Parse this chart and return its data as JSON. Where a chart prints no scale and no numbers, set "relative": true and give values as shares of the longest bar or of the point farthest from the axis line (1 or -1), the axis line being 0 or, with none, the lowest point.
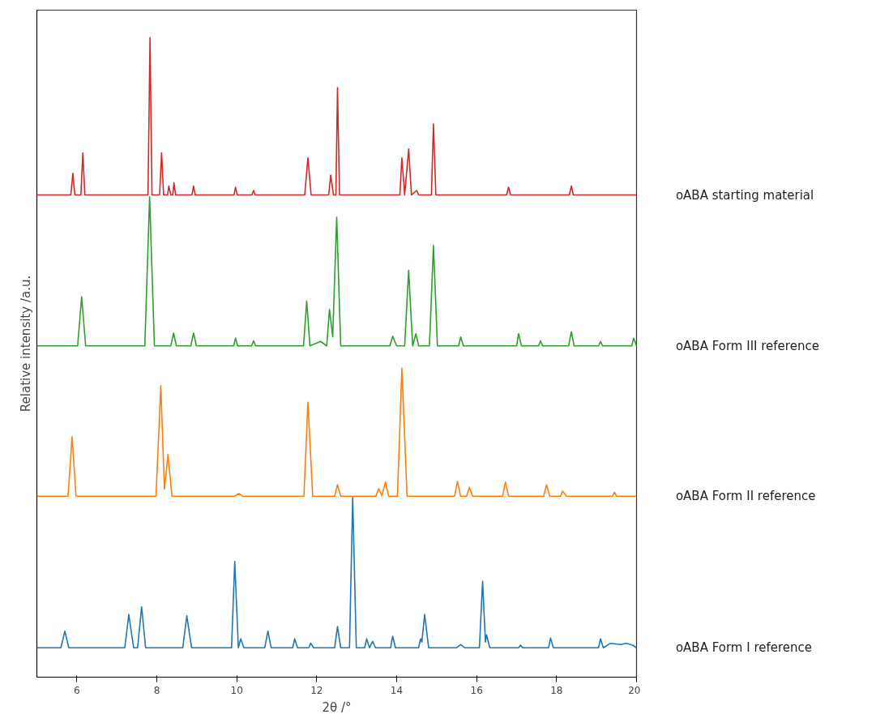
{
  "chart_data": {
    "type": "line",
    "relative": true,
    "xlabel": "2θ /°",
    "ylabel": "Relative intensity /a.u.",
    "xlim": [
      5,
      20
    ],
    "xticks": [
      6,
      8,
      10,
      12,
      14,
      16,
      18,
      20
    ],
    "grid": false,
    "tick_labels": "x",
    "series": [
      {
        "name": "oABA starting material",
        "color": "#d62728",
        "x": [
          5.0,
          5.85,
          5.9,
          5.95,
          6.1,
          6.15,
          6.2,
          7.78,
          7.83,
          7.88,
          8.07,
          8.12,
          8.17,
          8.27,
          8.3,
          8.35,
          8.4,
          8.43,
          8.47,
          8.88,
          8.92,
          8.96,
          9.93,
          9.97,
          10.01,
          10.38,
          10.42,
          10.46,
          11.7,
          11.78,
          11.86,
          12.3,
          12.35,
          12.42,
          12.48,
          12.52,
          12.57,
          14.08,
          14.13,
          14.2,
          14.3,
          14.37,
          14.5,
          14.55,
          14.87,
          14.92,
          14.98,
          16.75,
          16.8,
          16.85,
          18.32,
          18.37,
          18.42,
          20.0
        ],
        "values": [
          0.754,
          0.754,
          0.788,
          0.754,
          0.754,
          0.82,
          0.754,
          0.754,
          1.0,
          0.754,
          0.754,
          0.82,
          0.754,
          0.754,
          0.768,
          0.754,
          0.754,
          0.773,
          0.754,
          0.754,
          0.768,
          0.754,
          0.754,
          0.766,
          0.754,
          0.754,
          0.761,
          0.754,
          0.754,
          0.812,
          0.754,
          0.754,
          0.785,
          0.754,
          0.754,
          0.922,
          0.754,
          0.754,
          0.812,
          0.754,
          0.826,
          0.754,
          0.761,
          0.754,
          0.754,
          0.865,
          0.754,
          0.754,
          0.766,
          0.754,
          0.754,
          0.768,
          0.754,
          0.754
        ]
      },
      {
        "name": "oABA Form III reference",
        "color": "#2ca02c",
        "x": [
          5.0,
          6.02,
          6.12,
          6.22,
          7.7,
          7.82,
          7.94,
          8.35,
          8.42,
          8.49,
          8.85,
          8.92,
          8.99,
          9.92,
          9.97,
          10.02,
          10.37,
          10.42,
          10.47,
          11.67,
          11.75,
          11.83,
          12.1,
          12.25,
          12.32,
          12.4,
          12.5,
          12.6,
          13.83,
          13.9,
          14.0,
          14.2,
          14.3,
          14.4,
          14.48,
          14.55,
          14.82,
          14.92,
          15.02,
          15.55,
          15.6,
          15.67,
          17.0,
          17.05,
          17.12,
          17.55,
          17.6,
          17.65,
          18.3,
          18.37,
          18.44,
          19.05,
          19.1,
          19.15,
          19.88,
          19.93,
          20.0
        ],
        "values": [
          0.518,
          0.518,
          0.595,
          0.518,
          0.518,
          0.751,
          0.518,
          0.518,
          0.538,
          0.518,
          0.518,
          0.538,
          0.518,
          0.518,
          0.53,
          0.518,
          0.518,
          0.526,
          0.518,
          0.518,
          0.588,
          0.518,
          0.525,
          0.518,
          0.575,
          0.532,
          0.719,
          0.518,
          0.518,
          0.533,
          0.518,
          0.518,
          0.636,
          0.518,
          0.537,
          0.518,
          0.518,
          0.675,
          0.518,
          0.518,
          0.532,
          0.518,
          0.518,
          0.537,
          0.518,
          0.518,
          0.526,
          0.518,
          0.518,
          0.54,
          0.518,
          0.518,
          0.525,
          0.518,
          0.518,
          0.53,
          0.518
        ]
      },
      {
        "name": "oABA Form II reference",
        "color": "#ff7f0e",
        "x": [
          5.0,
          5.78,
          5.88,
          5.98,
          7.98,
          8.1,
          8.19,
          8.28,
          8.38,
          9.95,
          10.05,
          10.15,
          11.68,
          11.78,
          11.9,
          12.45,
          12.52,
          12.6,
          13.48,
          13.55,
          13.63,
          13.72,
          13.8,
          14.02,
          14.13,
          14.26,
          15.45,
          15.52,
          15.6,
          15.75,
          15.82,
          15.9,
          16.65,
          16.72,
          16.8,
          17.68,
          17.75,
          17.83,
          18.1,
          18.15,
          18.25,
          19.4,
          19.45,
          19.5,
          20.0
        ],
        "values": [
          0.283,
          0.283,
          0.376,
          0.283,
          0.283,
          0.456,
          0.294,
          0.348,
          0.283,
          0.283,
          0.287,
          0.283,
          0.283,
          0.43,
          0.283,
          0.283,
          0.301,
          0.283,
          0.283,
          0.295,
          0.284,
          0.305,
          0.283,
          0.283,
          0.483,
          0.283,
          0.283,
          0.306,
          0.283,
          0.283,
          0.297,
          0.283,
          0.283,
          0.305,
          0.283,
          0.283,
          0.301,
          0.283,
          0.283,
          0.291,
          0.283,
          0.283,
          0.289,
          0.283,
          0.283
        ]
      },
      {
        "name": "oABA Form I reference",
        "color": "#1f77b4",
        "x": [
          5.0,
          5.6,
          5.7,
          5.8,
          7.2,
          7.3,
          7.42,
          7.52,
          7.62,
          7.72,
          8.65,
          8.75,
          8.87,
          9.87,
          9.95,
          10.04,
          10.1,
          10.18,
          10.7,
          10.78,
          10.86,
          11.4,
          11.45,
          11.52,
          11.8,
          11.85,
          11.92,
          12.45,
          12.52,
          12.6,
          12.82,
          12.9,
          12.99,
          13.2,
          13.25,
          13.32,
          13.4,
          13.47,
          13.85,
          13.9,
          13.97,
          14.55,
          14.6,
          14.63,
          14.7,
          14.8,
          15.5,
          15.6,
          15.7,
          16.07,
          16.15,
          16.22,
          16.25,
          16.33,
          17.05,
          17.1,
          17.15,
          17.8,
          17.85,
          17.92,
          19.05,
          19.1,
          19.17,
          19.35,
          19.6,
          19.75,
          19.9,
          20.0
        ],
        "values": [
          0.046,
          0.046,
          0.072,
          0.046,
          0.046,
          0.098,
          0.046,
          0.046,
          0.11,
          0.046,
          0.046,
          0.096,
          0.046,
          0.046,
          0.181,
          0.046,
          0.06,
          0.046,
          0.046,
          0.072,
          0.046,
          0.046,
          0.06,
          0.046,
          0.046,
          0.053,
          0.046,
          0.046,
          0.079,
          0.046,
          0.046,
          0.281,
          0.046,
          0.046,
          0.06,
          0.046,
          0.056,
          0.046,
          0.046,
          0.064,
          0.046,
          0.046,
          0.06,
          0.055,
          0.098,
          0.046,
          0.046,
          0.051,
          0.046,
          0.046,
          0.15,
          0.055,
          0.066,
          0.046,
          0.046,
          0.05,
          0.046,
          0.046,
          0.061,
          0.046,
          0.046,
          0.06,
          0.046,
          0.053,
          0.051,
          0.053,
          0.05,
          0.046
        ]
      }
    ]
  }
}
